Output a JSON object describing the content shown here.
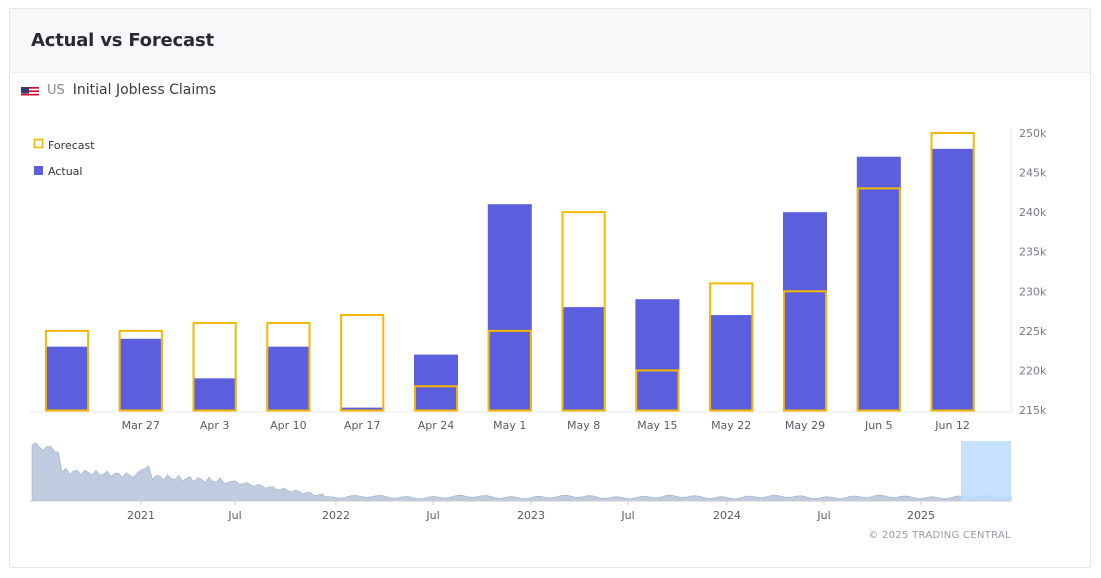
{
  "card": {
    "title": "Actual vs Forecast"
  },
  "indicator": {
    "country": "US",
    "name": "Initial Jobless Claims",
    "flag_icon": "us-flag-icon"
  },
  "legend": {
    "forecast": "Forecast",
    "actual": "Actual"
  },
  "colors": {
    "actual": "#5b5fde",
    "forecast": "#f5b800",
    "navigator_area": "#b8c6db",
    "navigator_selection": "#bcdcff"
  },
  "chart_data": {
    "type": "bar",
    "categories": [
      "",
      "Mar 27",
      "Apr 3",
      "Apr 10",
      "Apr 17",
      "Apr 24",
      "May 1",
      "May 8",
      "May 15",
      "May 22",
      "May 29",
      "Jun 5",
      "Jun 12"
    ],
    "series": [
      {
        "name": "Actual",
        "values": [
          223,
          224,
          219,
          223,
          215.3,
          222,
          241,
          228,
          229,
          227,
          240,
          247,
          248
        ]
      },
      {
        "name": "Forecast",
        "values": [
          225,
          225,
          226,
          226,
          227,
          218,
          225,
          240,
          220,
          231,
          230,
          243,
          250
        ]
      }
    ],
    "unit": "k",
    "ylim": [
      215,
      250
    ],
    "yticks": [
      "215k",
      "220k",
      "225k",
      "230k",
      "235k",
      "240k",
      "245k",
      "250k"
    ],
    "grid": false,
    "legend_position": "top-left",
    "navigator": {
      "labels": [
        "2021",
        "Jul",
        "2022",
        "Jul",
        "2023",
        "Jul",
        "2024",
        "Jul",
        "2025"
      ]
    }
  },
  "footer": {
    "copyright": "© 2025 TRADING CENTRAL"
  }
}
